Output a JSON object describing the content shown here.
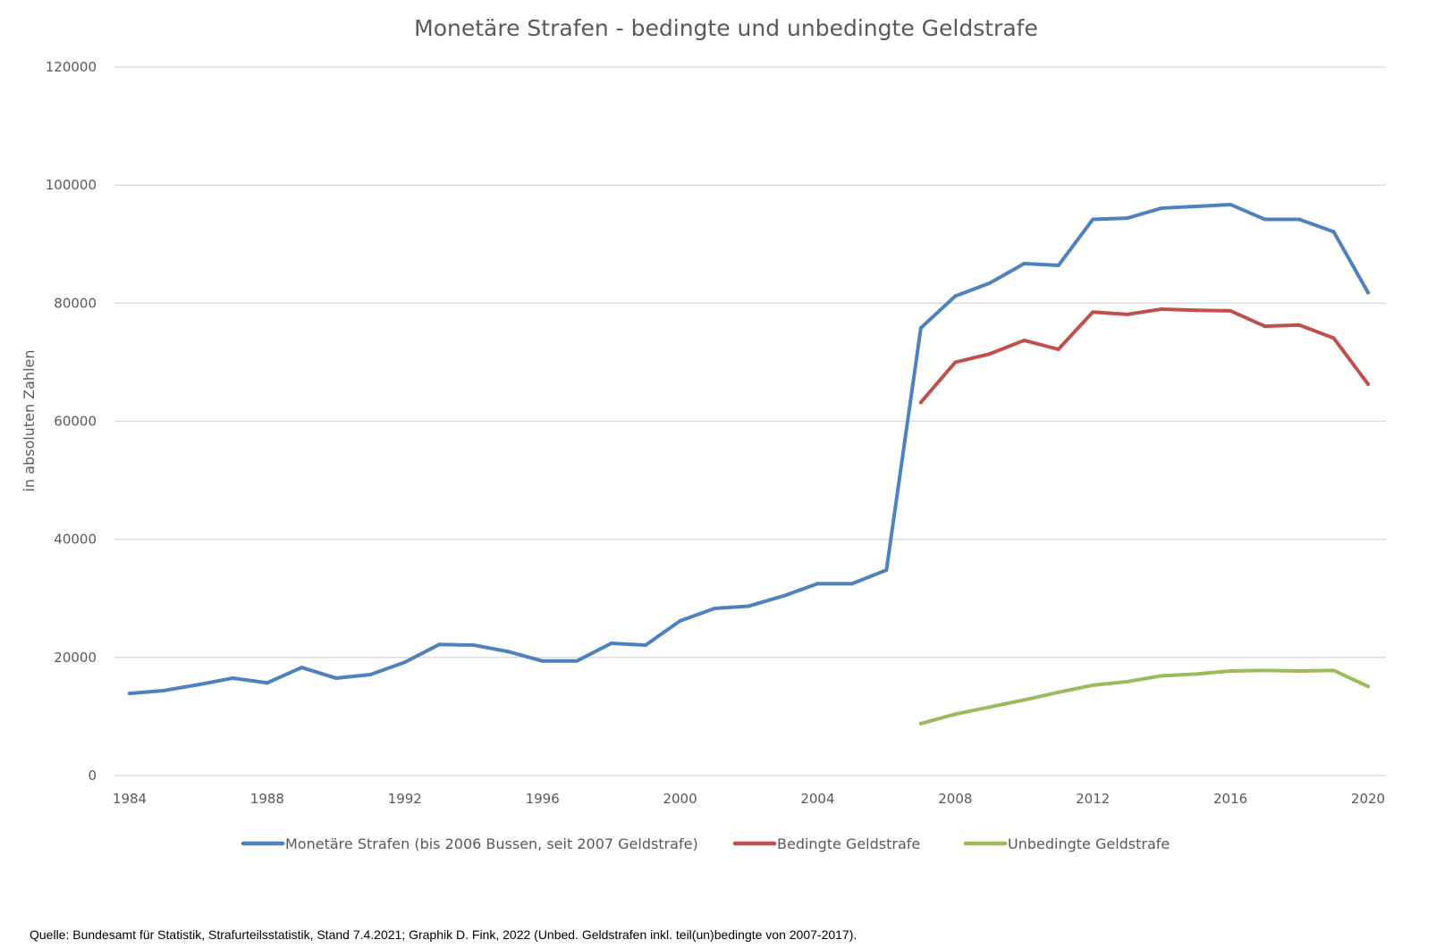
{
  "chart_data": {
    "type": "line",
    "title": "Monetäre Strafen - bedingte und unbedingte Geldstrafe",
    "xlabel": "",
    "ylabel": "in absoluten Zahlen",
    "ylim": [
      0,
      120000
    ],
    "xlim": [
      1984,
      2020
    ],
    "yticks": [
      "0",
      "20000",
      "40000",
      "60000",
      "80000",
      "100000",
      "120000"
    ],
    "xticks": [
      "1984",
      "1988",
      "1992",
      "1996",
      "2000",
      "2004",
      "2008",
      "2012",
      "2016",
      "2020"
    ],
    "grid": true,
    "legend": "bottom",
    "series": [
      {
        "name": "Monetäre Strafen (bis 2006 Bussen, seit 2007 Geldstrafe)",
        "color": "#4f81bd",
        "x": [
          1984,
          1985,
          1986,
          1987,
          1988,
          1989,
          1990,
          1991,
          1992,
          1993,
          1994,
          1995,
          1996,
          1997,
          1998,
          1999,
          2000,
          2001,
          2002,
          2003,
          2004,
          2005,
          2006,
          2007,
          2008,
          2009,
          2010,
          2011,
          2012,
          2013,
          2014,
          2015,
          2016,
          2017,
          2018,
          2019,
          2020
        ],
        "values": [
          13900,
          14400,
          15400,
          16500,
          15700,
          18300,
          16500,
          17100,
          19200,
          22200,
          22100,
          21000,
          19400,
          19400,
          22400,
          22100,
          26200,
          28300,
          28700,
          30400,
          32500,
          32500,
          34800,
          75800,
          81200,
          83400,
          86700,
          86400,
          94200,
          94400,
          96100,
          96400,
          96700,
          94200,
          94200,
          92100,
          81800
        ]
      },
      {
        "name": "Bedingte Geldstrafe",
        "color": "#c0504d",
        "x": [
          2007,
          2008,
          2009,
          2010,
          2011,
          2012,
          2013,
          2014,
          2015,
          2016,
          2017,
          2018,
          2019,
          2020
        ],
        "values": [
          63200,
          70000,
          71400,
          73700,
          72200,
          78500,
          78100,
          79000,
          78800,
          78700,
          76100,
          76300,
          74100,
          66300
        ]
      },
      {
        "name": "Unbedingte Geldstrafe",
        "color": "#9bbb59",
        "x": [
          2007,
          2008,
          2009,
          2010,
          2011,
          2012,
          2013,
          2014,
          2015,
          2016,
          2017,
          2018,
          2019,
          2020
        ],
        "values": [
          8800,
          10400,
          11600,
          12800,
          14100,
          15300,
          15900,
          16900,
          17200,
          17700,
          17800,
          17700,
          17800,
          15100
        ]
      }
    ]
  },
  "source": "Quelle: Bundesamt für Statistik, Strafurteilsstatistik, Stand 7.4.2021; Graphik D. Fink, 2022 (Unbed. Geldstrafen inkl. teil(un)bedingte von 2007-2017)."
}
